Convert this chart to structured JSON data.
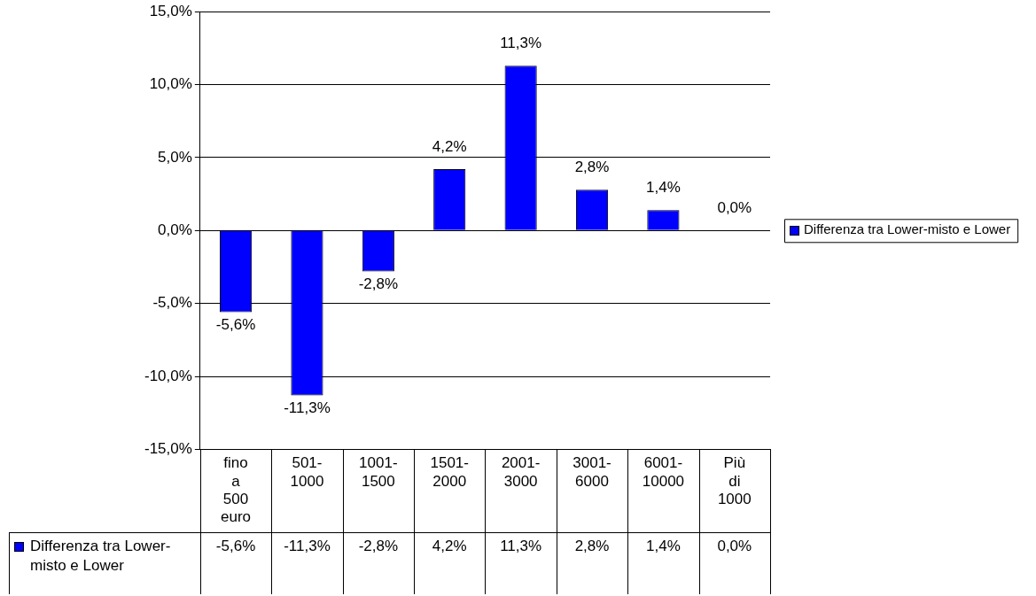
{
  "chart_data": {
    "type": "bar",
    "categories": [
      "fino a 500 euro",
      "501-1000",
      "1001-1500",
      "1501-2000",
      "2001-3000",
      "3001-6000",
      "6001-10000",
      "Più di 1000"
    ],
    "series": [
      {
        "name": "Differenza tra Lower-misto e Lower",
        "color": "#0000ff",
        "values": [
          -5.6,
          -11.3,
          -2.8,
          4.2,
          11.3,
          2.8,
          1.4,
          0.0
        ],
        "value_labels": [
          "-5,6%",
          "-11,3%",
          "-2,8%",
          "4,2%",
          "11,3%",
          "2,8%",
          "1,4%",
          "0,0%"
        ]
      }
    ],
    "ylim": [
      -15,
      15
    ],
    "yticks": [
      {
        "value": -15,
        "label": "-15,0%"
      },
      {
        "value": -10,
        "label": "-10,0%"
      },
      {
        "value": -5,
        "label": "-5,0%"
      },
      {
        "value": 0,
        "label": "0,0%"
      },
      {
        "value": 5,
        "label": "5,0%"
      },
      {
        "value": 10,
        "label": "10,0%"
      },
      {
        "value": 15,
        "label": "15,0%"
      }
    ],
    "grid": "y",
    "legend": "right"
  }
}
